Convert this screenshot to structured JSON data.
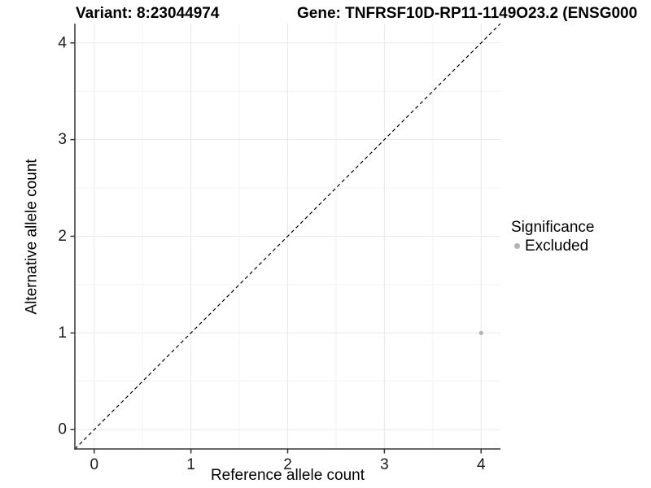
{
  "chart_data": {
    "type": "scatter",
    "title_left": "Variant: 8:23044974",
    "title_right": "Gene: TNFRSF10D-RP11-1149O23.2 (ENSG000",
    "xlabel": "Reference allele count",
    "ylabel": "Alternative allele count",
    "xlim": [
      -0.2,
      4.2
    ],
    "ylim": [
      -0.2,
      4.2
    ],
    "xticks": [
      0,
      1,
      2,
      3,
      4
    ],
    "yticks": [
      0,
      1,
      2,
      3,
      4
    ],
    "minor_xticks": [
      0.5,
      1.5,
      2.5,
      3.5
    ],
    "minor_yticks": [
      0.5,
      1.5,
      2.5,
      3.5
    ],
    "grid": "on",
    "identity_line": {
      "style": "dashed",
      "from": [
        -0.2,
        -0.2
      ],
      "to": [
        4.2,
        4.2
      ],
      "color": "#000000"
    },
    "points": [
      {
        "x": 4,
        "y": 1,
        "series": "Excluded"
      }
    ],
    "legend": {
      "position": "right",
      "title": "Significance",
      "items": [
        {
          "label": "Excluded",
          "color": "#b3b3b3"
        }
      ]
    },
    "colors": {
      "point_excluded": "#b3b3b3",
      "grid_major": "#e9e9e9",
      "grid_minor": "#f3f3f3",
      "axis_line": "#333333",
      "tick_mark": "#333333",
      "tick_text": "#1a1a1a"
    }
  }
}
